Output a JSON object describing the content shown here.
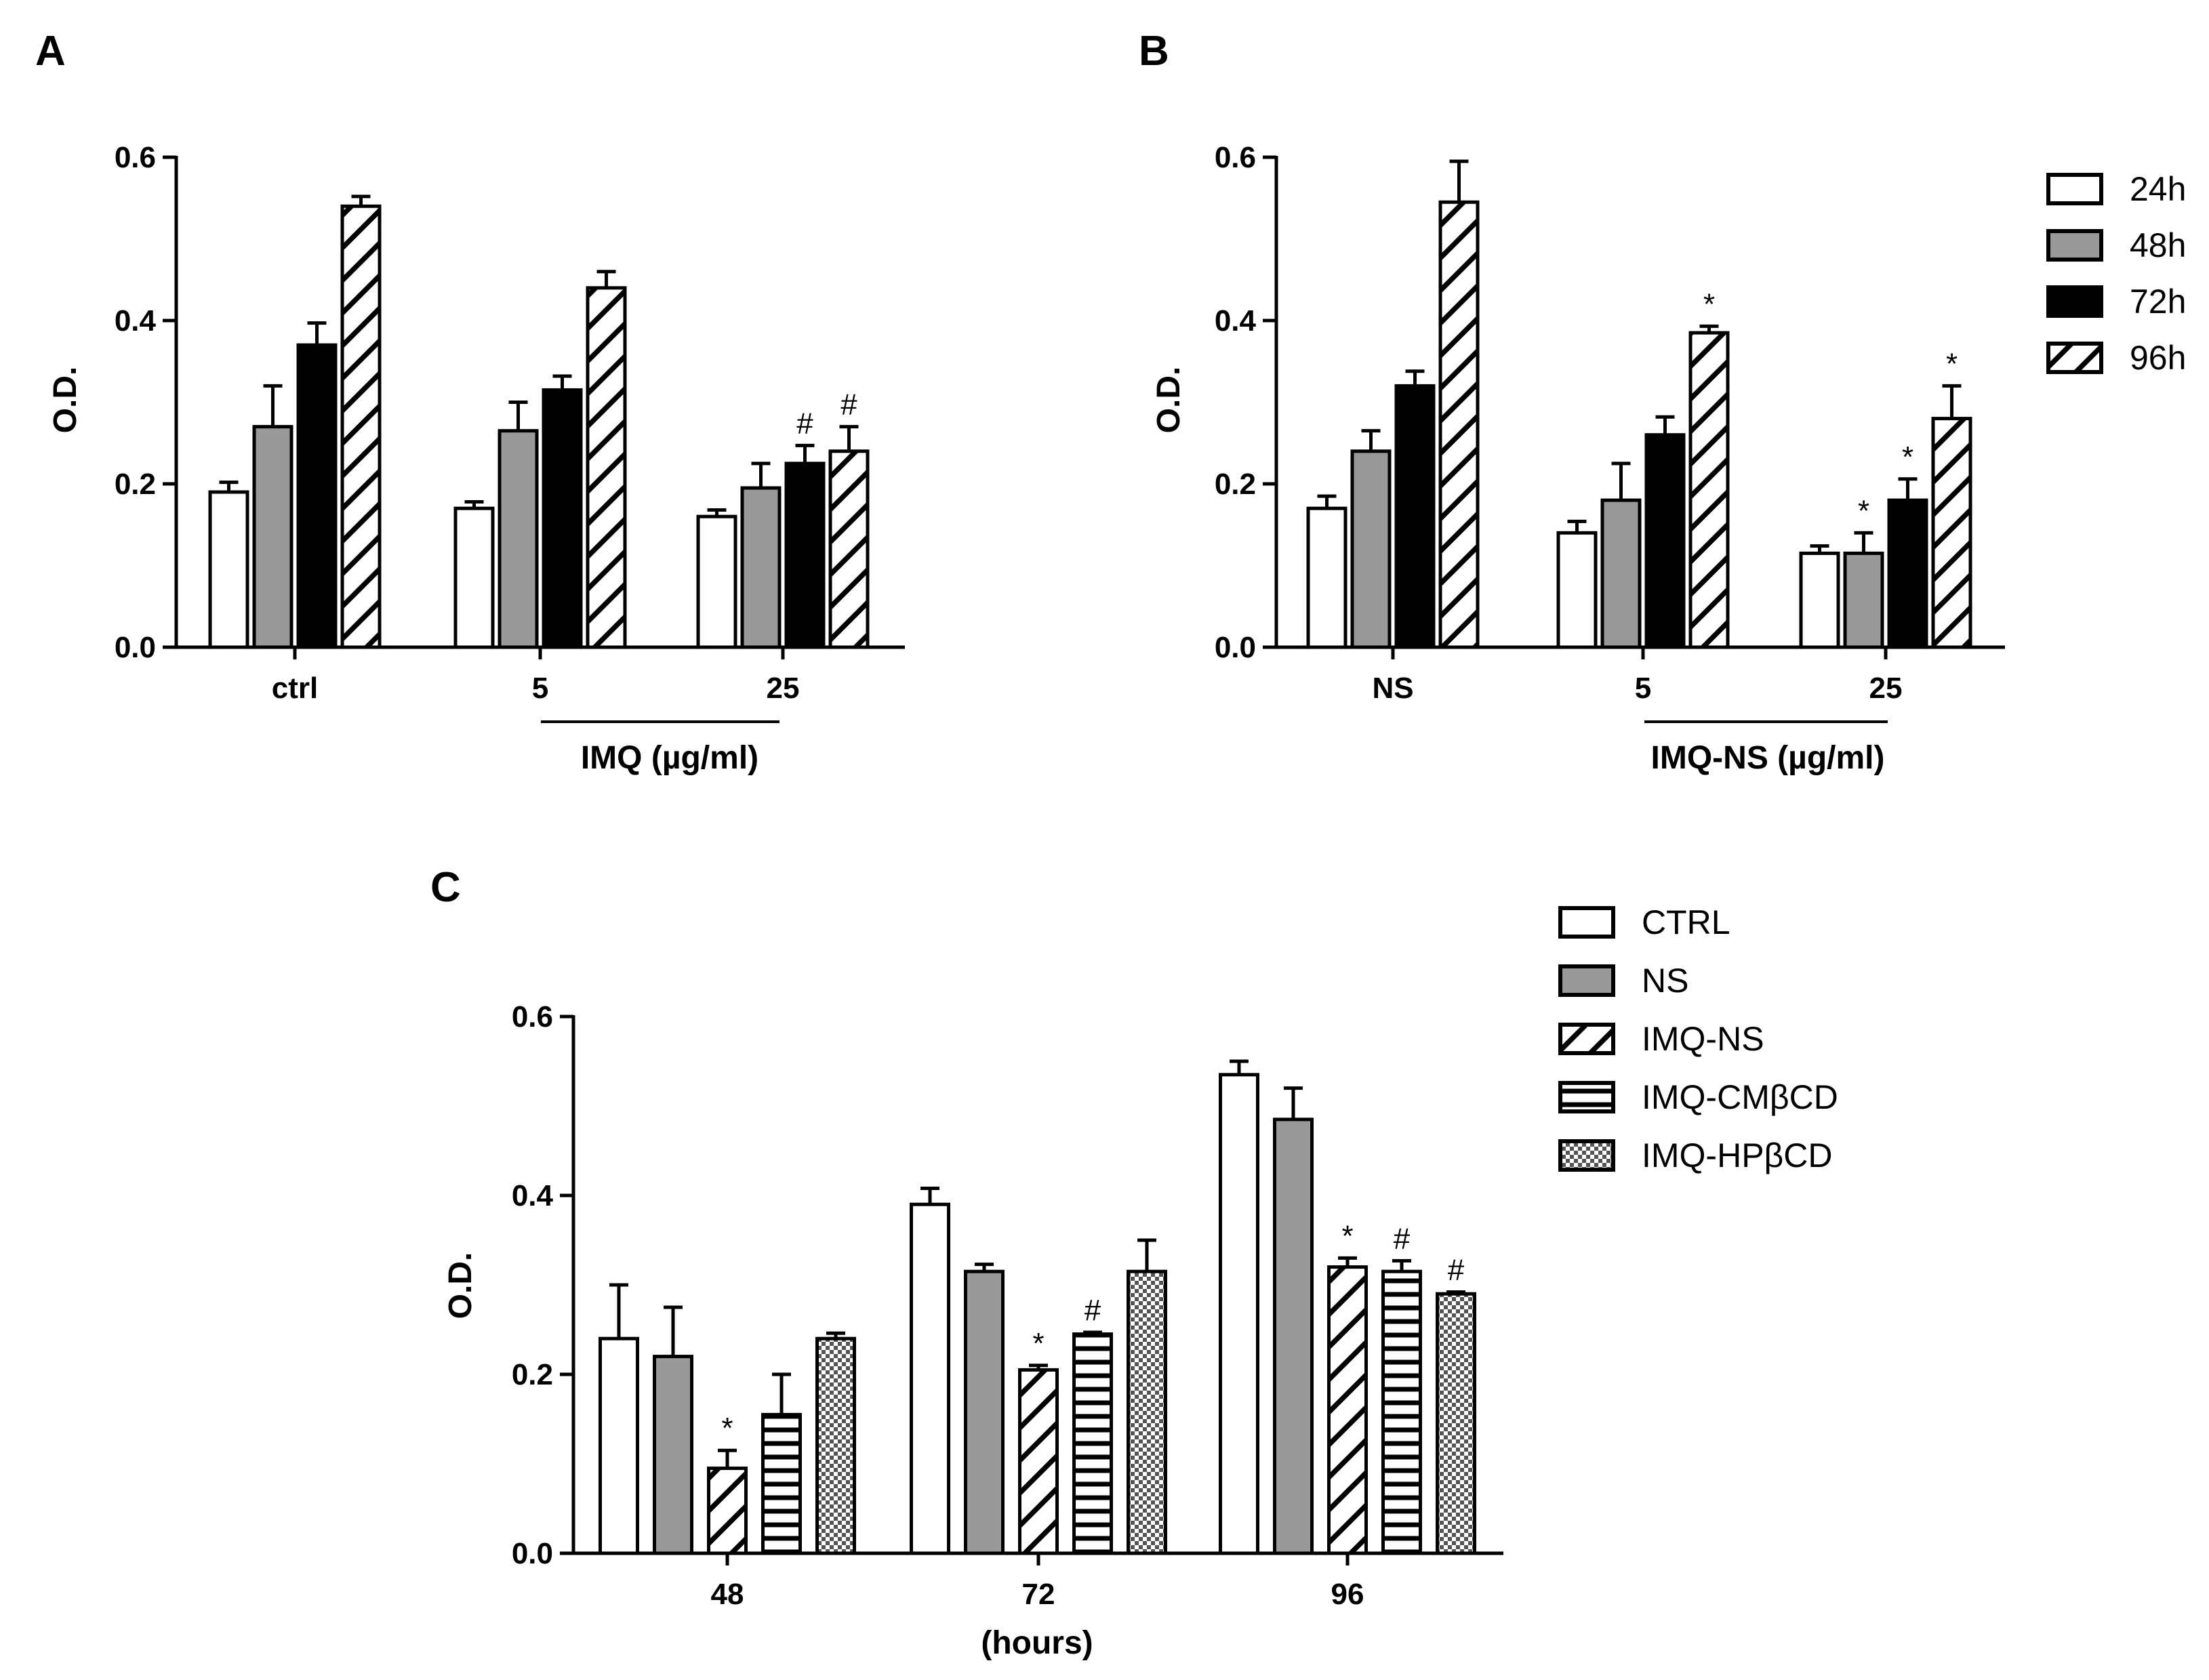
{
  "chart_data": [
    {
      "id": "A",
      "type": "bar",
      "panel_label": "A",
      "ylabel": "O.D.",
      "ylim": [
        0,
        0.6
      ],
      "yticks": [
        "0.0",
        "0.2",
        "0.4",
        "0.6"
      ],
      "categories": [
        "ctrl",
        "5",
        "25"
      ],
      "group_label": "IMQ (µg/ml)",
      "series": [
        {
          "name": "24h",
          "pattern": "white",
          "values": [
            0.19,
            0.17,
            0.16
          ],
          "errors": [
            0.012,
            0.008,
            0.008
          ],
          "marks": [
            "",
            "",
            ""
          ]
        },
        {
          "name": "48h",
          "pattern": "gray",
          "values": [
            0.27,
            0.265,
            0.195
          ],
          "errors": [
            0.05,
            0.035,
            0.03
          ],
          "marks": [
            "",
            "",
            ""
          ]
        },
        {
          "name": "72h",
          "pattern": "black",
          "values": [
            0.37,
            0.315,
            0.225
          ],
          "errors": [
            0.027,
            0.017,
            0.022
          ],
          "marks": [
            "",
            "",
            "#"
          ]
        },
        {
          "name": "96h",
          "pattern": "diagonal",
          "values": [
            0.54,
            0.44,
            0.24
          ],
          "errors": [
            0.012,
            0.02,
            0.03
          ],
          "marks": [
            "",
            "",
            "#"
          ]
        }
      ]
    },
    {
      "id": "B",
      "type": "bar",
      "panel_label": "B",
      "ylabel": "O.D.",
      "ylim": [
        0,
        0.6
      ],
      "yticks": [
        "0.0",
        "0.2",
        "0.4",
        "0.6"
      ],
      "categories": [
        "NS",
        "5",
        "25"
      ],
      "group_label": "IMQ-NS (µg/ml)",
      "series": [
        {
          "name": "24h",
          "pattern": "white",
          "values": [
            0.17,
            0.14,
            0.115
          ],
          "errors": [
            0.015,
            0.014,
            0.009
          ],
          "marks": [
            "",
            "",
            ""
          ]
        },
        {
          "name": "48h",
          "pattern": "gray",
          "values": [
            0.24,
            0.18,
            0.115
          ],
          "errors": [
            0.025,
            0.045,
            0.025
          ],
          "marks": [
            "",
            "",
            "*"
          ]
        },
        {
          "name": "72h",
          "pattern": "black",
          "values": [
            0.32,
            0.26,
            0.18
          ],
          "errors": [
            0.018,
            0.022,
            0.026
          ],
          "marks": [
            "",
            "",
            "*"
          ]
        },
        {
          "name": "96h",
          "pattern": "diagonal",
          "values": [
            0.545,
            0.385,
            0.28
          ],
          "errors": [
            0.05,
            0.008,
            0.04
          ],
          "marks": [
            "",
            "*",
            "*"
          ]
        }
      ]
    },
    {
      "id": "C",
      "type": "bar",
      "panel_label": "C",
      "ylabel": "O.D.",
      "ylim": [
        0,
        0.6
      ],
      "yticks": [
        "0.0",
        "0.2",
        "0.4",
        "0.6"
      ],
      "categories": [
        "48",
        "72",
        "96"
      ],
      "xlabel": "(hours)",
      "series": [
        {
          "name": "CTRL",
          "pattern": "white",
          "values": [
            0.24,
            0.39,
            0.535
          ],
          "errors": [
            0.06,
            0.018,
            0.015
          ],
          "marks": [
            "",
            "",
            ""
          ]
        },
        {
          "name": "NS",
          "pattern": "gray",
          "values": [
            0.22,
            0.315,
            0.485
          ],
          "errors": [
            0.055,
            0.008,
            0.035
          ],
          "marks": [
            "",
            "",
            ""
          ]
        },
        {
          "name": "IMQ-NS",
          "pattern": "diagonal",
          "values": [
            0.095,
            0.205,
            0.32
          ],
          "errors": [
            0.02,
            0.005,
            0.01
          ],
          "marks": [
            "*",
            "*",
            "*"
          ]
        },
        {
          "name": "IMQ-CMβCD",
          "pattern": "horizontal",
          "values": [
            0.155,
            0.245,
            0.315
          ],
          "errors": [
            0.045,
            0.002,
            0.012
          ],
          "marks": [
            "",
            "#",
            "#"
          ]
        },
        {
          "name": "IMQ-HPβCD",
          "pattern": "checker",
          "values": [
            0.24,
            0.315,
            0.29
          ],
          "errors": [
            0.006,
            0.035,
            0.002
          ],
          "marks": [
            "",
            "",
            "#"
          ]
        }
      ]
    }
  ],
  "legends": {
    "time": {
      "items": [
        {
          "label": "24h",
          "pattern": "white"
        },
        {
          "label": "48h",
          "pattern": "gray"
        },
        {
          "label": "72h",
          "pattern": "black"
        },
        {
          "label": "96h",
          "pattern": "diagonal"
        }
      ]
    },
    "formulation": {
      "items": [
        {
          "label": "CTRL",
          "pattern": "white"
        },
        {
          "label": "NS",
          "pattern": "gray"
        },
        {
          "label": "IMQ-NS",
          "pattern": "diagonal"
        },
        {
          "label": "IMQ-CMβCD",
          "pattern": "horizontal"
        },
        {
          "label": "IMQ-HPβCD",
          "pattern": "checker"
        }
      ]
    }
  },
  "colors": {
    "white": "#ffffff",
    "gray": "#999999",
    "black": "#000000",
    "stroke": "#000000"
  }
}
